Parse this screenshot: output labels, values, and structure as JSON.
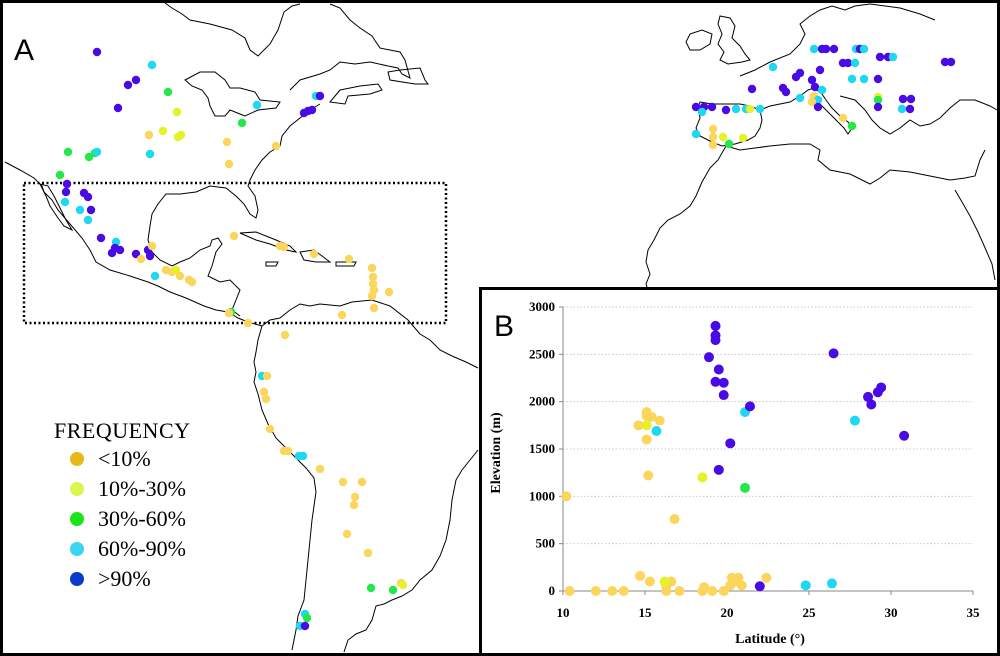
{
  "panels": {
    "map_label": "A",
    "chart_label": "B"
  },
  "legend": {
    "title": "FREQUENCY",
    "items": [
      {
        "label": "<10%",
        "color": "#e8b818"
      },
      {
        "label": "10%-30%",
        "color": "#dcf550"
      },
      {
        "label": "30%-60%",
        "color": "#19e619"
      },
      {
        "label": "60%-90%",
        "color": "#38d6f0"
      },
      {
        "label": ">90%",
        "color": "#0a3ac8"
      }
    ]
  },
  "point_colors": {
    "lt10": "#fcd55c",
    "10to30": "#e4f228",
    "30to60": "#22e84a",
    "60to90": "#1ed8f2",
    "gt90": "#4a0ae6"
  },
  "chart_data": {
    "type": "scatter",
    "title": "",
    "xlabel": "Latitude (°)",
    "ylabel": "Elevation (m)",
    "xlim": [
      10,
      35
    ],
    "ylim": [
      0,
      3000
    ],
    "xticks": [
      10,
      15,
      20,
      25,
      30,
      35
    ],
    "yticks": [
      0,
      500,
      1000,
      1500,
      2000,
      2500,
      3000
    ],
    "grid": "horizontal-dotted",
    "series": [
      {
        "name": "<10%",
        "color_key": "lt10",
        "points": [
          [
            10.2,
            1000
          ],
          [
            10.4,
            0
          ],
          [
            12.0,
            0
          ],
          [
            13.0,
            0
          ],
          [
            13.7,
            0
          ],
          [
            14.7,
            160
          ],
          [
            15.3,
            100
          ],
          [
            14.6,
            1750
          ],
          [
            15.1,
            1890
          ],
          [
            15.1,
            1850
          ],
          [
            15.4,
            1840
          ],
          [
            15.1,
            1600
          ],
          [
            15.2,
            1220
          ],
          [
            15.9,
            1800
          ],
          [
            16.3,
            50
          ],
          [
            16.3,
            0
          ],
          [
            16.6,
            100
          ],
          [
            16.8,
            760
          ],
          [
            17.1,
            0
          ],
          [
            18.5,
            0
          ],
          [
            18.6,
            40
          ],
          [
            19.1,
            0
          ],
          [
            19.8,
            0
          ],
          [
            20.2,
            60
          ],
          [
            20.3,
            140
          ],
          [
            20.7,
            140
          ],
          [
            20.5,
            100
          ],
          [
            20.9,
            60
          ],
          [
            22.4,
            140
          ]
        ]
      },
      {
        "name": "10%-30%",
        "color_key": "10to30",
        "points": [
          [
            15.1,
            1750
          ],
          [
            16.2,
            100
          ],
          [
            18.5,
            1200
          ]
        ]
      },
      {
        "name": "30%-60%",
        "color_key": "30to60",
        "points": [
          [
            21.1,
            1090
          ]
        ]
      },
      {
        "name": "60%-90%",
        "color_key": "60to90",
        "points": [
          [
            15.7,
            1690
          ],
          [
            21.1,
            1890
          ],
          [
            24.8,
            60
          ],
          [
            26.4,
            80
          ],
          [
            27.8,
            1800
          ]
        ]
      },
      {
        "name": ">90%",
        "color_key": "gt90",
        "points": [
          [
            19.3,
            2800
          ],
          [
            19.3,
            2700
          ],
          [
            19.3,
            2650
          ],
          [
            18.9,
            2470
          ],
          [
            19.5,
            2340
          ],
          [
            19.3,
            2210
          ],
          [
            19.8,
            2200
          ],
          [
            19.8,
            2070
          ],
          [
            21.4,
            1950
          ],
          [
            20.2,
            1560
          ],
          [
            19.5,
            1280
          ],
          [
            22.0,
            50
          ],
          [
            26.5,
            2510
          ],
          [
            28.6,
            2050
          ],
          [
            28.8,
            1970
          ],
          [
            29.2,
            2100
          ],
          [
            29.4,
            2150
          ],
          [
            30.8,
            1640
          ]
        ]
      }
    ]
  }
}
